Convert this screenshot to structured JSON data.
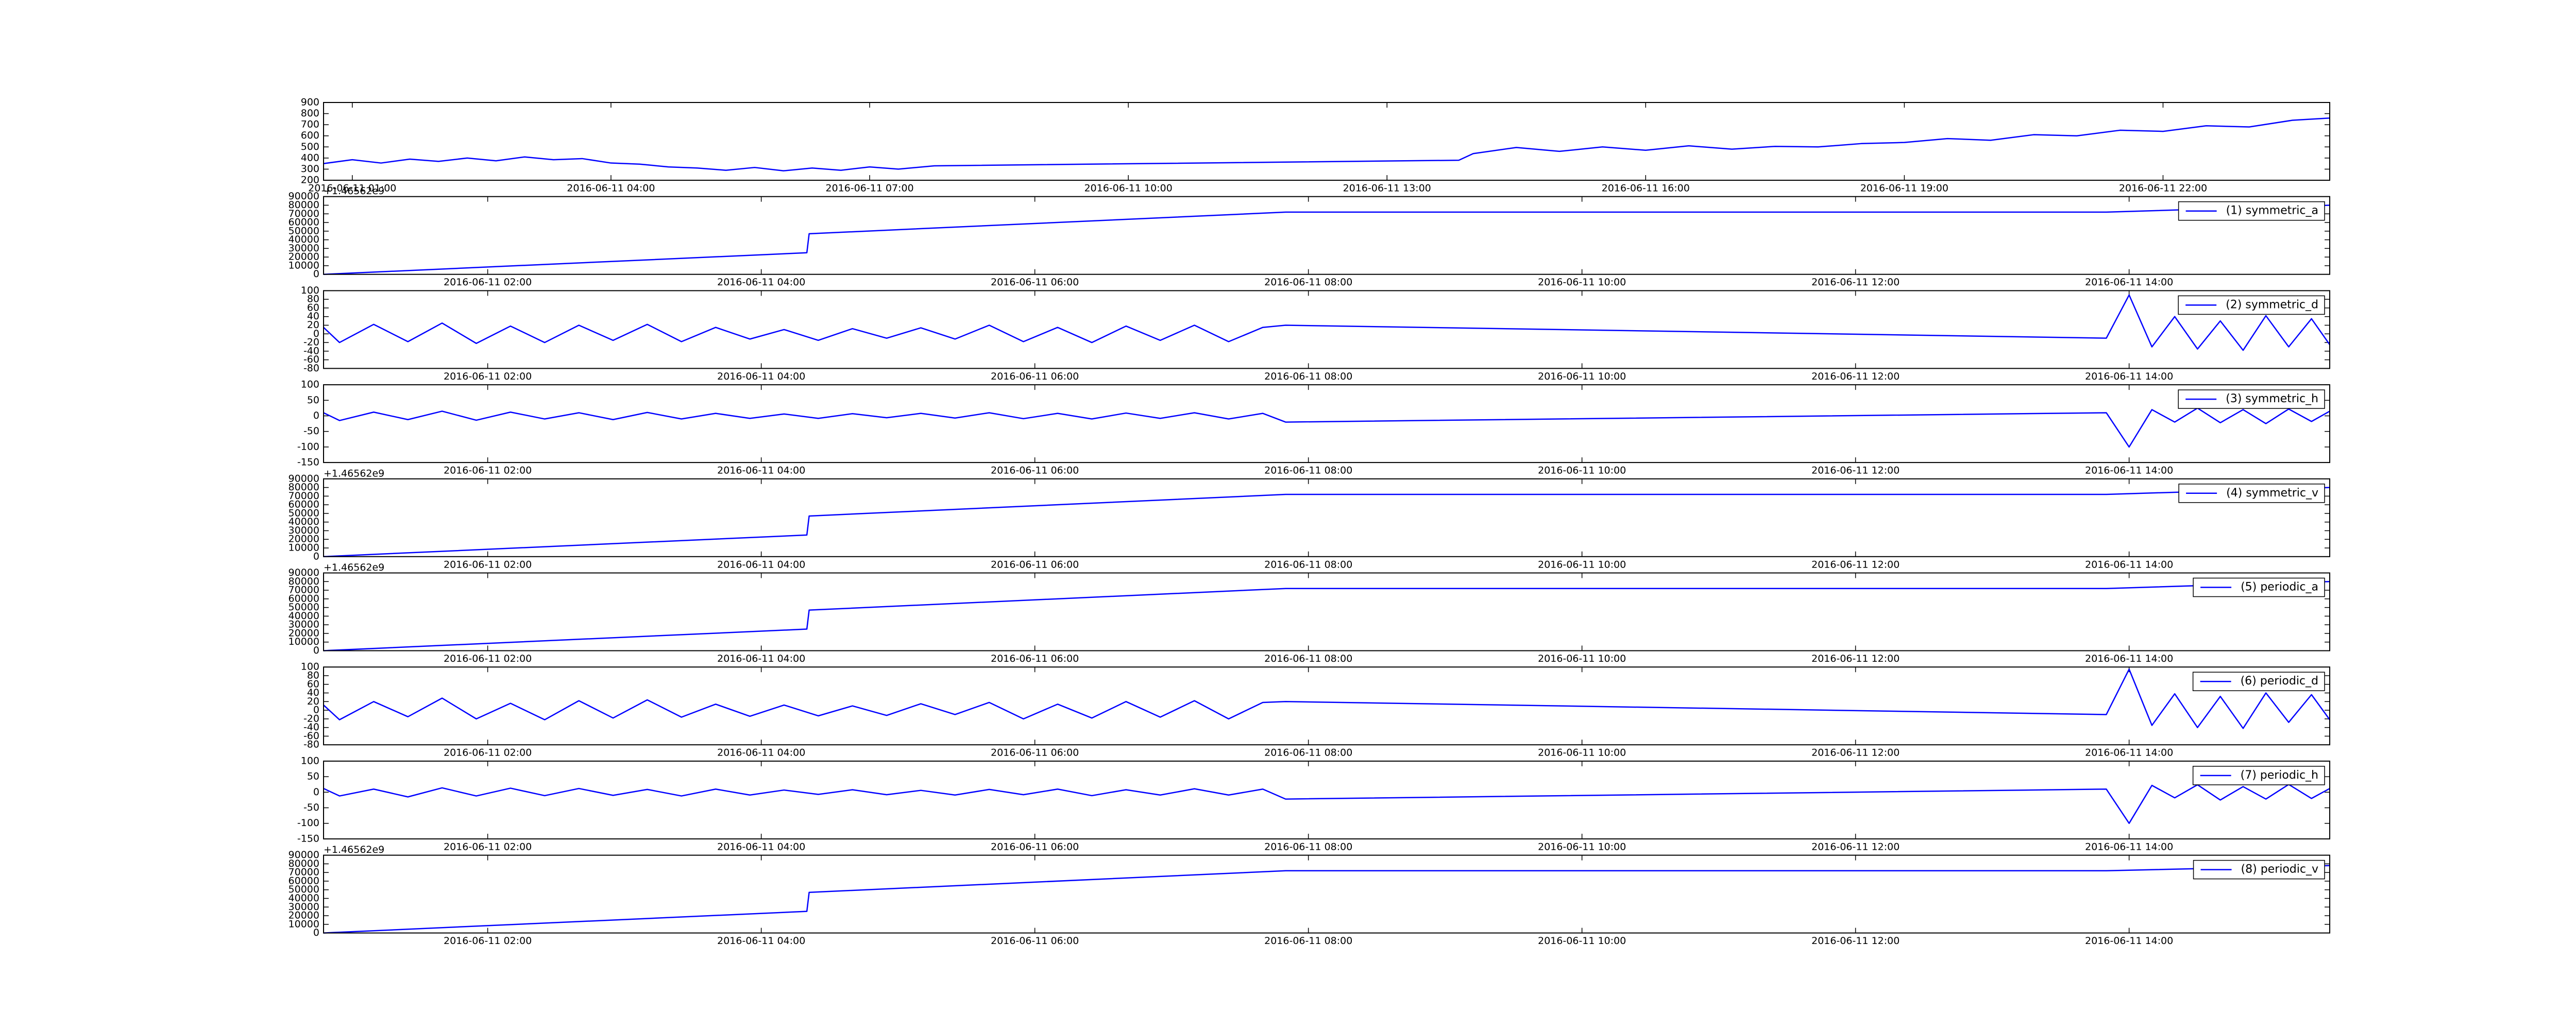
{
  "chart_data": [
    {
      "type": "line",
      "xlim": [
        "2016-06-11 00:40",
        "2016-06-11 23:56"
      ],
      "xticks": [
        "2016-06-11 01:00",
        "2016-06-11 04:00",
        "2016-06-11 07:00",
        "2016-06-11 10:00",
        "2016-06-11 13:00",
        "2016-06-11 16:00",
        "2016-06-11 19:00",
        "2016-06-11 22:00"
      ],
      "ylim": [
        200,
        900
      ],
      "yticks": [
        200,
        300,
        400,
        500,
        600,
        700,
        800,
        900
      ],
      "x": [
        "2016-06-11 00:40",
        "2016-06-11 01:00",
        "2016-06-11 01:20",
        "2016-06-11 01:40",
        "2016-06-11 02:00",
        "2016-06-11 02:20",
        "2016-06-11 02:40",
        "2016-06-11 03:00",
        "2016-06-11 03:20",
        "2016-06-11 03:40",
        "2016-06-11 04:00",
        "2016-06-11 04:20",
        "2016-06-11 04:40",
        "2016-06-11 05:00",
        "2016-06-11 05:20",
        "2016-06-11 05:40",
        "2016-06-11 06:00",
        "2016-06-11 06:20",
        "2016-06-11 06:40",
        "2016-06-11 07:00",
        "2016-06-11 07:20",
        "2016-06-11 07:45",
        "2016-06-11 13:50",
        "2016-06-11 14:00",
        "2016-06-11 14:30",
        "2016-06-11 15:00",
        "2016-06-11 15:30",
        "2016-06-11 16:00",
        "2016-06-11 16:30",
        "2016-06-11 17:00",
        "2016-06-11 17:30",
        "2016-06-11 18:00",
        "2016-06-11 18:30",
        "2016-06-11 19:00",
        "2016-06-11 19:30",
        "2016-06-11 20:00",
        "2016-06-11 20:30",
        "2016-06-11 21:00",
        "2016-06-11 21:30",
        "2016-06-11 22:00",
        "2016-06-11 22:30",
        "2016-06-11 23:00",
        "2016-06-11 23:30",
        "2016-06-11 23:56"
      ],
      "series": [
        {
          "color": "#0000ff",
          "values": [
            350,
            385,
            355,
            390,
            370,
            400,
            375,
            410,
            385,
            395,
            355,
            345,
            320,
            310,
            290,
            315,
            285,
            310,
            290,
            320,
            300,
            330,
            380,
            440,
            495,
            460,
            500,
            470,
            510,
            480,
            505,
            500,
            530,
            540,
            575,
            560,
            610,
            600,
            650,
            640,
            690,
            680,
            740,
            760
          ]
        }
      ]
    },
    {
      "type": "line",
      "offset_text": "+1.46562e9",
      "legend": "upper right",
      "xlim": [
        "2016-06-11 00:48",
        "2016-06-11 15:28"
      ],
      "xticks": [
        "2016-06-11 02:00",
        "2016-06-11 04:00",
        "2016-06-11 06:00",
        "2016-06-11 08:00",
        "2016-06-11 10:00",
        "2016-06-11 12:00",
        "2016-06-11 14:00"
      ],
      "ylim": [
        0,
        90000
      ],
      "yticks": [
        0,
        10000,
        20000,
        30000,
        40000,
        50000,
        60000,
        70000,
        80000,
        90000
      ],
      "x": [
        "2016-06-11 00:48",
        "2016-06-11 04:20",
        "2016-06-11 04:21",
        "2016-06-11 07:50",
        "2016-06-11 13:50",
        "2016-06-11 15:28"
      ],
      "series": [
        {
          "name": "(1) symmetric_a",
          "color": "#0000ff",
          "values": [
            0,
            25000,
            47000,
            72000,
            72000,
            80000
          ]
        }
      ]
    },
    {
      "type": "line",
      "legend": "upper right",
      "xlim": [
        "2016-06-11 00:48",
        "2016-06-11 15:28"
      ],
      "xticks": [
        "2016-06-11 02:00",
        "2016-06-11 04:00",
        "2016-06-11 06:00",
        "2016-06-11 08:00",
        "2016-06-11 10:00",
        "2016-06-11 12:00",
        "2016-06-11 14:00"
      ],
      "ylim": [
        -80,
        100
      ],
      "yticks": [
        -80,
        -60,
        -40,
        -20,
        0,
        20,
        40,
        60,
        80,
        100
      ],
      "x": [
        "2016-06-11 00:48",
        "2016-06-11 00:55",
        "2016-06-11 01:10",
        "2016-06-11 01:25",
        "2016-06-11 01:40",
        "2016-06-11 01:55",
        "2016-06-11 02:10",
        "2016-06-11 02:25",
        "2016-06-11 02:40",
        "2016-06-11 02:55",
        "2016-06-11 03:10",
        "2016-06-11 03:25",
        "2016-06-11 03:40",
        "2016-06-11 03:55",
        "2016-06-11 04:10",
        "2016-06-11 04:25",
        "2016-06-11 04:40",
        "2016-06-11 04:55",
        "2016-06-11 05:10",
        "2016-06-11 05:25",
        "2016-06-11 05:40",
        "2016-06-11 05:55",
        "2016-06-11 06:10",
        "2016-06-11 06:25",
        "2016-06-11 06:40",
        "2016-06-11 06:55",
        "2016-06-11 07:10",
        "2016-06-11 07:25",
        "2016-06-11 07:40",
        "2016-06-11 07:50",
        "2016-06-11 13:50",
        "2016-06-11 14:00",
        "2016-06-11 14:10",
        "2016-06-11 14:20",
        "2016-06-11 14:30",
        "2016-06-11 14:40",
        "2016-06-11 14:50",
        "2016-06-11 15:00",
        "2016-06-11 15:10",
        "2016-06-11 15:20",
        "2016-06-11 15:28"
      ],
      "series": [
        {
          "name": "(2) symmetric_d",
          "color": "#0000ff",
          "values": [
            15,
            -20,
            22,
            -18,
            25,
            -22,
            18,
            -20,
            20,
            -15,
            22,
            -18,
            15,
            -12,
            10,
            -15,
            12,
            -10,
            14,
            -12,
            20,
            -18,
            15,
            -20,
            18,
            -15,
            20,
            -18,
            15,
            20,
            -10,
            90,
            -30,
            40,
            -35,
            30,
            -38,
            42,
            -30,
            35,
            -25
          ]
        }
      ]
    },
    {
      "type": "line",
      "legend": "upper right",
      "xlim": [
        "2016-06-11 00:48",
        "2016-06-11 15:28"
      ],
      "xticks": [
        "2016-06-11 02:00",
        "2016-06-11 04:00",
        "2016-06-11 06:00",
        "2016-06-11 08:00",
        "2016-06-11 10:00",
        "2016-06-11 12:00",
        "2016-06-11 14:00"
      ],
      "ylim": [
        -150,
        100
      ],
      "yticks": [
        -150,
        -100,
        -50,
        0,
        50,
        100
      ],
      "x": [
        "2016-06-11 00:48",
        "2016-06-11 00:55",
        "2016-06-11 01:10",
        "2016-06-11 01:25",
        "2016-06-11 01:40",
        "2016-06-11 01:55",
        "2016-06-11 02:10",
        "2016-06-11 02:25",
        "2016-06-11 02:40",
        "2016-06-11 02:55",
        "2016-06-11 03:10",
        "2016-06-11 03:25",
        "2016-06-11 03:40",
        "2016-06-11 03:55",
        "2016-06-11 04:10",
        "2016-06-11 04:25",
        "2016-06-11 04:40",
        "2016-06-11 04:55",
        "2016-06-11 05:10",
        "2016-06-11 05:25",
        "2016-06-11 05:40",
        "2016-06-11 05:55",
        "2016-06-11 06:10",
        "2016-06-11 06:25",
        "2016-06-11 06:40",
        "2016-06-11 06:55",
        "2016-06-11 07:10",
        "2016-06-11 07:25",
        "2016-06-11 07:40",
        "2016-06-11 07:50",
        "2016-06-11 13:50",
        "2016-06-11 14:00",
        "2016-06-11 14:10",
        "2016-06-11 14:20",
        "2016-06-11 14:30",
        "2016-06-11 14:40",
        "2016-06-11 14:50",
        "2016-06-11 15:00",
        "2016-06-11 15:10",
        "2016-06-11 15:20",
        "2016-06-11 15:28"
      ],
      "series": [
        {
          "name": "(3) symmetric_h",
          "color": "#0000ff",
          "values": [
            10,
            -15,
            12,
            -12,
            15,
            -14,
            12,
            -10,
            10,
            -12,
            11,
            -10,
            8,
            -8,
            6,
            -8,
            7,
            -6,
            8,
            -7,
            10,
            -9,
            8,
            -10,
            9,
            -8,
            10,
            -10,
            8,
            -20,
            10,
            -100,
            20,
            -20,
            25,
            -22,
            20,
            -25,
            22,
            -18,
            15
          ]
        }
      ]
    },
    {
      "type": "line",
      "offset_text": "+1.46562e9",
      "legend": "upper right",
      "xlim": [
        "2016-06-11 00:48",
        "2016-06-11 15:28"
      ],
      "xticks": [
        "2016-06-11 02:00",
        "2016-06-11 04:00",
        "2016-06-11 06:00",
        "2016-06-11 08:00",
        "2016-06-11 10:00",
        "2016-06-11 12:00",
        "2016-06-11 14:00"
      ],
      "ylim": [
        0,
        90000
      ],
      "yticks": [
        0,
        10000,
        20000,
        30000,
        40000,
        50000,
        60000,
        70000,
        80000,
        90000
      ],
      "x": [
        "2016-06-11 00:48",
        "2016-06-11 04:20",
        "2016-06-11 04:21",
        "2016-06-11 07:50",
        "2016-06-11 13:50",
        "2016-06-11 15:28"
      ],
      "series": [
        {
          "name": "(4) symmetric_v",
          "color": "#0000ff",
          "values": [
            0,
            25000,
            47000,
            72000,
            72000,
            80000
          ]
        }
      ]
    },
    {
      "type": "line",
      "offset_text": "+1.46562e9",
      "legend": "upper right",
      "xlim": [
        "2016-06-11 00:48",
        "2016-06-11 15:28"
      ],
      "xticks": [
        "2016-06-11 02:00",
        "2016-06-11 04:00",
        "2016-06-11 06:00",
        "2016-06-11 08:00",
        "2016-06-11 10:00",
        "2016-06-11 12:00",
        "2016-06-11 14:00"
      ],
      "ylim": [
        0,
        90000
      ],
      "yticks": [
        0,
        10000,
        20000,
        30000,
        40000,
        50000,
        60000,
        70000,
        80000,
        90000
      ],
      "x": [
        "2016-06-11 00:48",
        "2016-06-11 04:20",
        "2016-06-11 04:21",
        "2016-06-11 07:50",
        "2016-06-11 13:50",
        "2016-06-11 15:28"
      ],
      "series": [
        {
          "name": "(5) periodic_a",
          "color": "#0000ff",
          "values": [
            0,
            25000,
            47000,
            72000,
            72000,
            80000
          ]
        }
      ]
    },
    {
      "type": "line",
      "legend": "upper right",
      "xlim": [
        "2016-06-11 00:48",
        "2016-06-11 15:28"
      ],
      "xticks": [
        "2016-06-11 02:00",
        "2016-06-11 04:00",
        "2016-06-11 06:00",
        "2016-06-11 08:00",
        "2016-06-11 10:00",
        "2016-06-11 12:00",
        "2016-06-11 14:00"
      ],
      "ylim": [
        -80,
        100
      ],
      "yticks": [
        -80,
        -60,
        -40,
        -20,
        0,
        20,
        40,
        60,
        80,
        100
      ],
      "x": [
        "2016-06-11 00:48",
        "2016-06-11 00:55",
        "2016-06-11 01:10",
        "2016-06-11 01:25",
        "2016-06-11 01:40",
        "2016-06-11 01:55",
        "2016-06-11 02:10",
        "2016-06-11 02:25",
        "2016-06-11 02:40",
        "2016-06-11 02:55",
        "2016-06-11 03:10",
        "2016-06-11 03:25",
        "2016-06-11 03:40",
        "2016-06-11 03:55",
        "2016-06-11 04:10",
        "2016-06-11 04:25",
        "2016-06-11 04:40",
        "2016-06-11 04:55",
        "2016-06-11 05:10",
        "2016-06-11 05:25",
        "2016-06-11 05:40",
        "2016-06-11 05:55",
        "2016-06-11 06:10",
        "2016-06-11 06:25",
        "2016-06-11 06:40",
        "2016-06-11 06:55",
        "2016-06-11 07:10",
        "2016-06-11 07:25",
        "2016-06-11 07:40",
        "2016-06-11 07:50",
        "2016-06-11 13:50",
        "2016-06-11 14:00",
        "2016-06-11 14:10",
        "2016-06-11 14:20",
        "2016-06-11 14:30",
        "2016-06-11 14:40",
        "2016-06-11 14:50",
        "2016-06-11 15:00",
        "2016-06-11 15:10",
        "2016-06-11 15:20",
        "2016-06-11 15:28"
      ],
      "series": [
        {
          "name": "(6) periodic_d",
          "color": "#0000ff",
          "values": [
            12,
            -22,
            20,
            -15,
            28,
            -20,
            16,
            -22,
            22,
            -18,
            24,
            -16,
            14,
            -14,
            12,
            -13,
            10,
            -12,
            15,
            -10,
            18,
            -20,
            14,
            -18,
            20,
            -16,
            22,
            -20,
            18,
            20,
            -10,
            95,
            -35,
            38,
            -40,
            32,
            -42,
            40,
            -28,
            36,
            -22
          ]
        }
      ]
    },
    {
      "type": "line",
      "legend": "upper right",
      "xlim": [
        "2016-06-11 00:48",
        "2016-06-11 15:28"
      ],
      "xticks": [
        "2016-06-11 02:00",
        "2016-06-11 04:00",
        "2016-06-11 06:00",
        "2016-06-11 08:00",
        "2016-06-11 10:00",
        "2016-06-11 12:00",
        "2016-06-11 14:00"
      ],
      "ylim": [
        -150,
        100
      ],
      "yticks": [
        -150,
        -100,
        -50,
        0,
        50,
        100
      ],
      "x": [
        "2016-06-11 00:48",
        "2016-06-11 00:55",
        "2016-06-11 01:10",
        "2016-06-11 01:25",
        "2016-06-11 01:40",
        "2016-06-11 01:55",
        "2016-06-11 02:10",
        "2016-06-11 02:25",
        "2016-06-11 02:40",
        "2016-06-11 02:55",
        "2016-06-11 03:10",
        "2016-06-11 03:25",
        "2016-06-11 03:40",
        "2016-06-11 03:55",
        "2016-06-11 04:10",
        "2016-06-11 04:25",
        "2016-06-11 04:40",
        "2016-06-11 04:55",
        "2016-06-11 05:10",
        "2016-06-11 05:25",
        "2016-06-11 05:40",
        "2016-06-11 05:55",
        "2016-06-11 06:10",
        "2016-06-11 06:25",
        "2016-06-11 06:40",
        "2016-06-11 06:55",
        "2016-06-11 07:10",
        "2016-06-11 07:25",
        "2016-06-11 07:40",
        "2016-06-11 07:50",
        "2016-06-11 13:50",
        "2016-06-11 14:00",
        "2016-06-11 14:10",
        "2016-06-11 14:20",
        "2016-06-11 14:30",
        "2016-06-11 14:40",
        "2016-06-11 14:50",
        "2016-06-11 15:00",
        "2016-06-11 15:10",
        "2016-06-11 15:20",
        "2016-06-11 15:28"
      ],
      "series": [
        {
          "name": "(7) periodic_h",
          "color": "#0000ff",
          "values": [
            12,
            -12,
            10,
            -15,
            14,
            -12,
            13,
            -11,
            12,
            -10,
            9,
            -12,
            10,
            -9,
            7,
            -7,
            8,
            -8,
            6,
            -9,
            9,
            -8,
            10,
            -11,
            8,
            -9,
            11,
            -9,
            10,
            -22,
            10,
            -100,
            22,
            -18,
            24,
            -25,
            18,
            -22,
            25,
            -20,
            12
          ]
        }
      ]
    },
    {
      "type": "line",
      "offset_text": "+1.46562e9",
      "legend": "upper right",
      "xlim": [
        "2016-06-11 00:48",
        "2016-06-11 15:28"
      ],
      "xticks": [
        "2016-06-11 02:00",
        "2016-06-11 04:00",
        "2016-06-11 06:00",
        "2016-06-11 08:00",
        "2016-06-11 10:00",
        "2016-06-11 12:00",
        "2016-06-11 14:00"
      ],
      "ylim": [
        0,
        90000
      ],
      "yticks": [
        0,
        10000,
        20000,
        30000,
        40000,
        50000,
        60000,
        70000,
        80000,
        90000
      ],
      "x": [
        "2016-06-11 00:48",
        "2016-06-11 04:20",
        "2016-06-11 04:21",
        "2016-06-11 07:50",
        "2016-06-11 13:50",
        "2016-06-11 15:28"
      ],
      "series": [
        {
          "name": "(8) periodic_v",
          "color": "#0000ff",
          "values": [
            0,
            25000,
            47000,
            72000,
            72000,
            78000
          ]
        }
      ]
    }
  ]
}
